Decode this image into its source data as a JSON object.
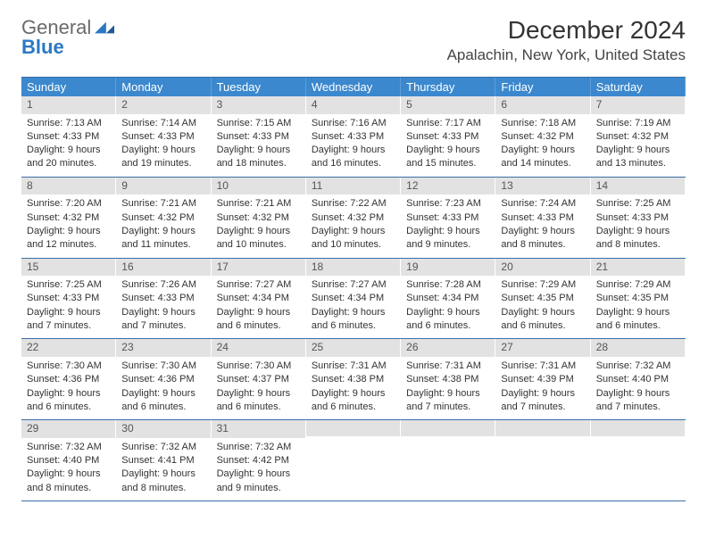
{
  "logo": {
    "part1": "General",
    "part2": "Blue"
  },
  "title": "December 2024",
  "location": "Apalachin, New York, United States",
  "colors": {
    "header_bg": "#3b88ce",
    "header_text": "#ffffff",
    "daynum_bg": "#e2e2e2",
    "border": "#3a6fa8",
    "text": "#333333",
    "logo_gray": "#6a6a6a",
    "logo_blue": "#2b78c5"
  },
  "weekdays": [
    "Sunday",
    "Monday",
    "Tuesday",
    "Wednesday",
    "Thursday",
    "Friday",
    "Saturday"
  ],
  "weeks": [
    [
      {
        "n": "1",
        "sr": "Sunrise: 7:13 AM",
        "ss": "Sunset: 4:33 PM",
        "d1": "Daylight: 9 hours",
        "d2": "and 20 minutes."
      },
      {
        "n": "2",
        "sr": "Sunrise: 7:14 AM",
        "ss": "Sunset: 4:33 PM",
        "d1": "Daylight: 9 hours",
        "d2": "and 19 minutes."
      },
      {
        "n": "3",
        "sr": "Sunrise: 7:15 AM",
        "ss": "Sunset: 4:33 PM",
        "d1": "Daylight: 9 hours",
        "d2": "and 18 minutes."
      },
      {
        "n": "4",
        "sr": "Sunrise: 7:16 AM",
        "ss": "Sunset: 4:33 PM",
        "d1": "Daylight: 9 hours",
        "d2": "and 16 minutes."
      },
      {
        "n": "5",
        "sr": "Sunrise: 7:17 AM",
        "ss": "Sunset: 4:33 PM",
        "d1": "Daylight: 9 hours",
        "d2": "and 15 minutes."
      },
      {
        "n": "6",
        "sr": "Sunrise: 7:18 AM",
        "ss": "Sunset: 4:32 PM",
        "d1": "Daylight: 9 hours",
        "d2": "and 14 minutes."
      },
      {
        "n": "7",
        "sr": "Sunrise: 7:19 AM",
        "ss": "Sunset: 4:32 PM",
        "d1": "Daylight: 9 hours",
        "d2": "and 13 minutes."
      }
    ],
    [
      {
        "n": "8",
        "sr": "Sunrise: 7:20 AM",
        "ss": "Sunset: 4:32 PM",
        "d1": "Daylight: 9 hours",
        "d2": "and 12 minutes."
      },
      {
        "n": "9",
        "sr": "Sunrise: 7:21 AM",
        "ss": "Sunset: 4:32 PM",
        "d1": "Daylight: 9 hours",
        "d2": "and 11 minutes."
      },
      {
        "n": "10",
        "sr": "Sunrise: 7:21 AM",
        "ss": "Sunset: 4:32 PM",
        "d1": "Daylight: 9 hours",
        "d2": "and 10 minutes."
      },
      {
        "n": "11",
        "sr": "Sunrise: 7:22 AM",
        "ss": "Sunset: 4:32 PM",
        "d1": "Daylight: 9 hours",
        "d2": "and 10 minutes."
      },
      {
        "n": "12",
        "sr": "Sunrise: 7:23 AM",
        "ss": "Sunset: 4:33 PM",
        "d1": "Daylight: 9 hours",
        "d2": "and 9 minutes."
      },
      {
        "n": "13",
        "sr": "Sunrise: 7:24 AM",
        "ss": "Sunset: 4:33 PM",
        "d1": "Daylight: 9 hours",
        "d2": "and 8 minutes."
      },
      {
        "n": "14",
        "sr": "Sunrise: 7:25 AM",
        "ss": "Sunset: 4:33 PM",
        "d1": "Daylight: 9 hours",
        "d2": "and 8 minutes."
      }
    ],
    [
      {
        "n": "15",
        "sr": "Sunrise: 7:25 AM",
        "ss": "Sunset: 4:33 PM",
        "d1": "Daylight: 9 hours",
        "d2": "and 7 minutes."
      },
      {
        "n": "16",
        "sr": "Sunrise: 7:26 AM",
        "ss": "Sunset: 4:33 PM",
        "d1": "Daylight: 9 hours",
        "d2": "and 7 minutes."
      },
      {
        "n": "17",
        "sr": "Sunrise: 7:27 AM",
        "ss": "Sunset: 4:34 PM",
        "d1": "Daylight: 9 hours",
        "d2": "and 6 minutes."
      },
      {
        "n": "18",
        "sr": "Sunrise: 7:27 AM",
        "ss": "Sunset: 4:34 PM",
        "d1": "Daylight: 9 hours",
        "d2": "and 6 minutes."
      },
      {
        "n": "19",
        "sr": "Sunrise: 7:28 AM",
        "ss": "Sunset: 4:34 PM",
        "d1": "Daylight: 9 hours",
        "d2": "and 6 minutes."
      },
      {
        "n": "20",
        "sr": "Sunrise: 7:29 AM",
        "ss": "Sunset: 4:35 PM",
        "d1": "Daylight: 9 hours",
        "d2": "and 6 minutes."
      },
      {
        "n": "21",
        "sr": "Sunrise: 7:29 AM",
        "ss": "Sunset: 4:35 PM",
        "d1": "Daylight: 9 hours",
        "d2": "and 6 minutes."
      }
    ],
    [
      {
        "n": "22",
        "sr": "Sunrise: 7:30 AM",
        "ss": "Sunset: 4:36 PM",
        "d1": "Daylight: 9 hours",
        "d2": "and 6 minutes."
      },
      {
        "n": "23",
        "sr": "Sunrise: 7:30 AM",
        "ss": "Sunset: 4:36 PM",
        "d1": "Daylight: 9 hours",
        "d2": "and 6 minutes."
      },
      {
        "n": "24",
        "sr": "Sunrise: 7:30 AM",
        "ss": "Sunset: 4:37 PM",
        "d1": "Daylight: 9 hours",
        "d2": "and 6 minutes."
      },
      {
        "n": "25",
        "sr": "Sunrise: 7:31 AM",
        "ss": "Sunset: 4:38 PM",
        "d1": "Daylight: 9 hours",
        "d2": "and 6 minutes."
      },
      {
        "n": "26",
        "sr": "Sunrise: 7:31 AM",
        "ss": "Sunset: 4:38 PM",
        "d1": "Daylight: 9 hours",
        "d2": "and 7 minutes."
      },
      {
        "n": "27",
        "sr": "Sunrise: 7:31 AM",
        "ss": "Sunset: 4:39 PM",
        "d1": "Daylight: 9 hours",
        "d2": "and 7 minutes."
      },
      {
        "n": "28",
        "sr": "Sunrise: 7:32 AM",
        "ss": "Sunset: 4:40 PM",
        "d1": "Daylight: 9 hours",
        "d2": "and 7 minutes."
      }
    ],
    [
      {
        "n": "29",
        "sr": "Sunrise: 7:32 AM",
        "ss": "Sunset: 4:40 PM",
        "d1": "Daylight: 9 hours",
        "d2": "and 8 minutes."
      },
      {
        "n": "30",
        "sr": "Sunrise: 7:32 AM",
        "ss": "Sunset: 4:41 PM",
        "d1": "Daylight: 9 hours",
        "d2": "and 8 minutes."
      },
      {
        "n": "31",
        "sr": "Sunrise: 7:32 AM",
        "ss": "Sunset: 4:42 PM",
        "d1": "Daylight: 9 hours",
        "d2": "and 9 minutes."
      },
      {
        "empty": true
      },
      {
        "empty": true
      },
      {
        "empty": true
      },
      {
        "empty": true
      }
    ]
  ]
}
